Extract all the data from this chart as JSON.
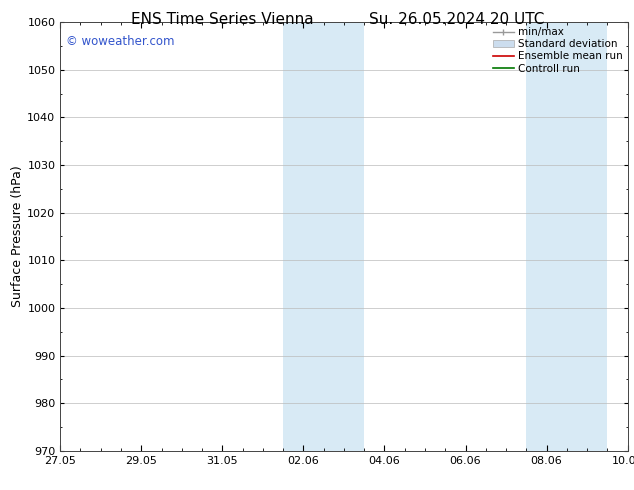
{
  "title_left": "ENS Time Series Vienna",
  "title_right": "Su. 26.05.2024 20 UTC",
  "ylabel": "Surface Pressure (hPa)",
  "ylim": [
    970,
    1060
  ],
  "yticks": [
    970,
    980,
    990,
    1000,
    1010,
    1020,
    1030,
    1040,
    1050,
    1060
  ],
  "xlim_start": 0,
  "xlim_end": 14,
  "xtick_positions": [
    0,
    2,
    4,
    6,
    8,
    10,
    12,
    14
  ],
  "xtick_labels": [
    "27.05",
    "29.05",
    "31.05",
    "02.06",
    "04.06",
    "06.06",
    "08.06",
    "10.06"
  ],
  "shaded_bands": [
    {
      "x_start": 5.5,
      "x_end": 7.5
    },
    {
      "x_start": 11.5,
      "x_end": 13.5
    }
  ],
  "shaded_color": "#d8eaf5",
  "watermark_text": "© woweather.com",
  "watermark_color": "#3355cc",
  "legend_items": [
    {
      "label": "min/max",
      "color": "#999999",
      "lw": 1.0
    },
    {
      "label": "Standard deviation",
      "color": "#ccddee",
      "lw": 6
    },
    {
      "label": "Ensemble mean run",
      "color": "#cc0000",
      "lw": 1.2
    },
    {
      "label": "Controll run",
      "color": "#007700",
      "lw": 1.2
    }
  ],
  "bg_color": "#ffffff",
  "plot_bg_color": "#ffffff",
  "grid_color": "#bbbbbb",
  "title_fontsize": 11,
  "tick_fontsize": 8,
  "label_fontsize": 9,
  "legend_fontsize": 7.5
}
